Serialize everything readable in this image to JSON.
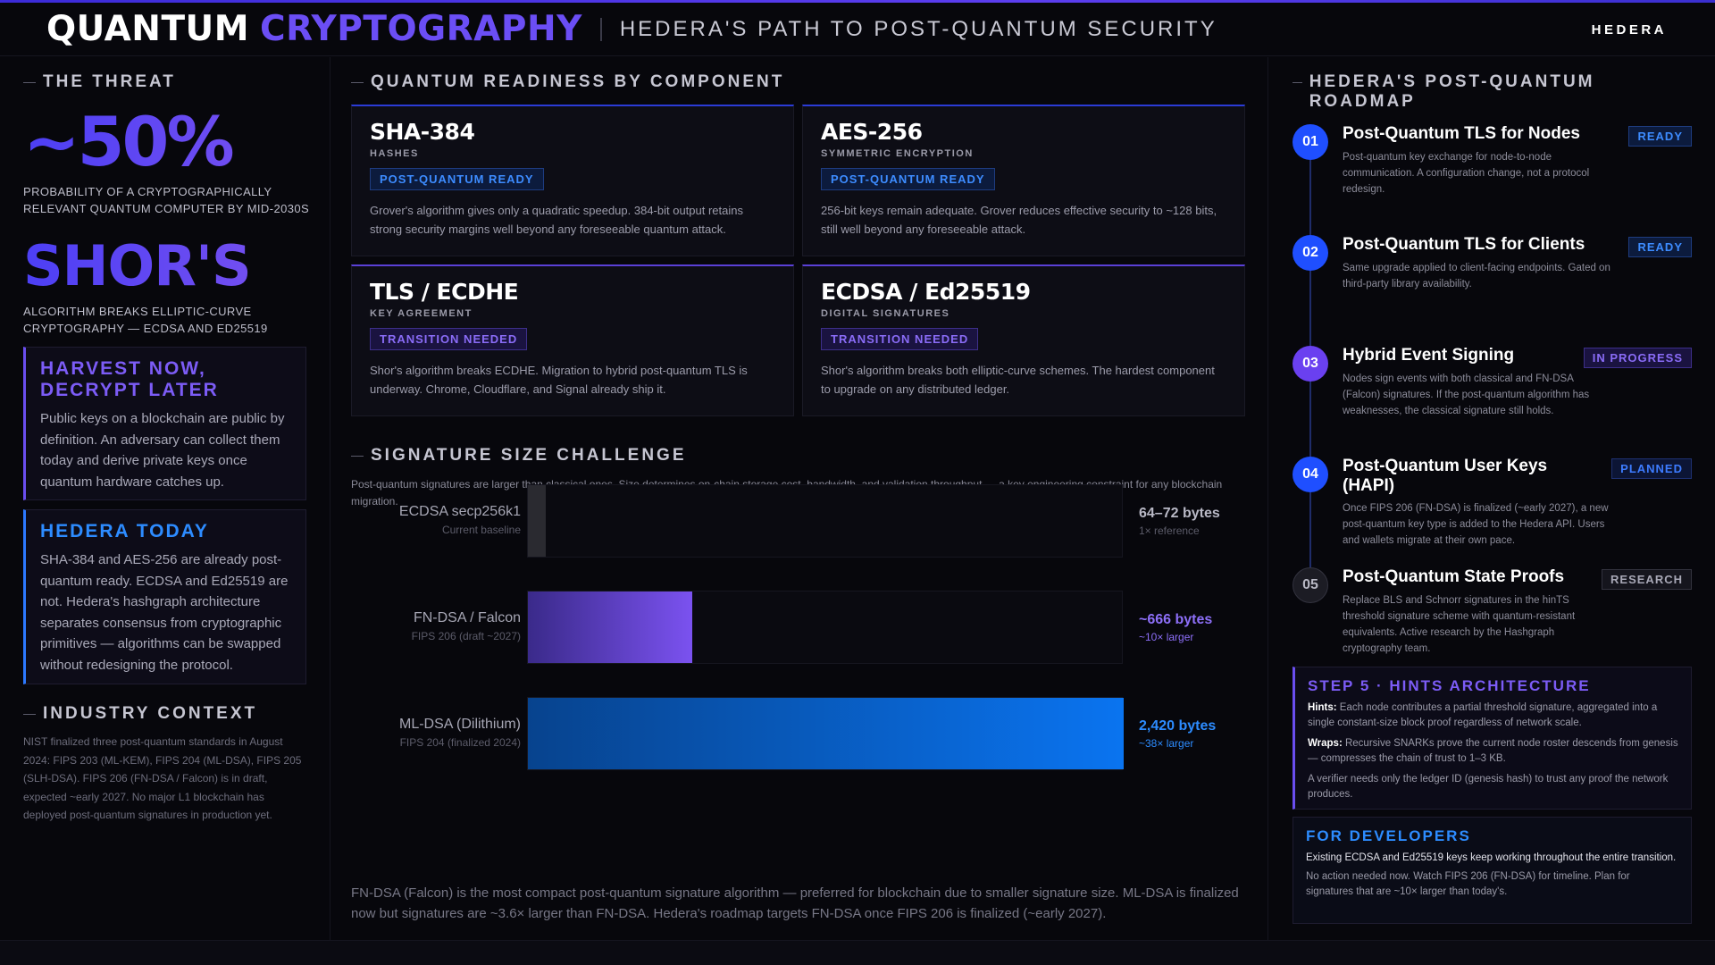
{
  "header": {
    "title_a": "QUANTUM",
    "title_b": "CRYPTOGRAPHY",
    "subtitle": "HEDERA'S PATH TO POST-QUANTUM SECURITY",
    "brand": "HEDERA"
  },
  "threat": {
    "heading": "THE THREAT",
    "stat1": "~50%",
    "stat1_caption": "PROBABILITY OF A CRYPTOGRAPHICALLY RELEVANT QUANTUM COMPUTER BY MID-2030S",
    "stat2": "SHOR'S",
    "stat2_caption": "ALGORITHM BREAKS ELLIPTIC-CURVE CRYPTOGRAPHY — ECDSA AND ED25519",
    "harvest_title": "HARVEST NOW, DECRYPT LATER",
    "harvest_body": "Public keys on a blockchain are public by definition. An adversary can collect them today and derive private keys once quantum hardware catches up.",
    "today_title": "HEDERA TODAY",
    "today_body": "SHA-384 and AES-256 are already post-quantum ready. ECDSA and Ed25519 are not. Hedera's hashgraph architecture separates consensus from cryptographic primitives — algorithms can be swapped without redesigning the protocol.",
    "industry_heading": "INDUSTRY CONTEXT",
    "industry_body": "NIST finalized three post-quantum standards in August 2024: FIPS 203 (ML-KEM), FIPS 204 (ML-DSA), FIPS 205 (SLH-DSA). FIPS 206 (FN-DSA / Falcon) is in draft, expected ~early 2027. No major L1 blockchain has deployed post-quantum signatures in production yet."
  },
  "readiness": {
    "heading": "QUANTUM READINESS BY COMPONENT",
    "cards": [
      {
        "title": "SHA-384",
        "sub": "HASHES",
        "badge": "POST-QUANTUM READY",
        "body": "Grover's algorithm gives only a quadratic speedup. 384-bit output retains strong security margins well beyond any foreseeable quantum attack."
      },
      {
        "title": "AES-256",
        "sub": "SYMMETRIC ENCRYPTION",
        "badge": "POST-QUANTUM READY",
        "body": "256-bit keys remain adequate. Grover reduces effective security to ~128 bits, still well beyond any foreseeable attack."
      },
      {
        "title": "TLS / ECDHE",
        "sub": "KEY AGREEMENT",
        "badge": "TRANSITION NEEDED",
        "body": "Shor's algorithm breaks ECDHE. Migration to hybrid post-quantum TLS is underway. Chrome, Cloudflare, and Signal already ship it."
      },
      {
        "title": "ECDSA / Ed25519",
        "sub": "DIGITAL SIGNATURES",
        "badge": "TRANSITION NEEDED",
        "body": "Shor's algorithm breaks both elliptic-curve schemes. The hardest component to upgrade on any distributed ledger."
      }
    ]
  },
  "signature": {
    "heading": "SIGNATURE SIZE CHALLENGE",
    "description": "Post-quantum signatures are larger than classical ones. Size determines on-chain storage cost, bandwidth, and validation throughput — a key engineering constraint for any blockchain migration.",
    "closing": "FN-DSA (Falcon) is the most compact post-quantum signature algorithm — preferred for blockchain due to smaller signature size. ML-DSA is finalized now but signatures are ~3.6× larger than FN-DSA. Hedera's roadmap targets FN-DSA once FIPS 206 is finalized (~early 2027)."
  },
  "chart_data": {
    "type": "bar",
    "orientation": "horizontal",
    "categories": [
      "ECDSA secp256k1",
      "FN-DSA / Falcon",
      "ML-DSA (Dilithium)"
    ],
    "category_notes": [
      "Current baseline",
      "FIPS 206 (draft ~2027)",
      "FIPS 204 (finalized 2024)"
    ],
    "values": [
      72,
      666,
      2420
    ],
    "value_labels": [
      "64–72 bytes",
      "~666 bytes",
      "2,420 bytes"
    ],
    "multiplier_labels": [
      "1× reference",
      "~10× larger",
      "~38× larger"
    ],
    "xlim": [
      0,
      2420
    ],
    "colors": [
      "#2a2a30",
      "#7b52f0",
      "#0a74f0"
    ],
    "value_colors": [
      "#b9b9c6",
      "#8d6ff8",
      "#2d8cff"
    ],
    "grid": false
  },
  "roadmap": {
    "heading": "HEDERA'S POST-QUANTUM ROADMAP",
    "items": [
      {
        "num": "01",
        "title": "Post-Quantum TLS for Nodes",
        "badge": "READY",
        "body": "Post-quantum key exchange for node-to-node communication. A configuration change, not a protocol redesign."
      },
      {
        "num": "02",
        "title": "Post-Quantum TLS for Clients",
        "badge": "READY",
        "body": "Same upgrade applied to client-facing endpoints. Gated on third-party library availability."
      },
      {
        "num": "03",
        "title": "Hybrid Event Signing",
        "badge": "IN PROGRESS",
        "body": "Nodes sign events with both classical and FN-DSA (Falcon) signatures. If the post-quantum algorithm has weaknesses, the classical signature still holds."
      },
      {
        "num": "04",
        "title": "Post-Quantum User Keys (HAPI)",
        "badge": "PLANNED",
        "body": "Once FIPS 206 (FN-DSA) is finalized (~early 2027), a new post-quantum key type is added to the Hedera API. Users and wallets migrate at their own pace."
      },
      {
        "num": "05",
        "title": "Post-Quantum State Proofs",
        "badge": "RESEARCH",
        "body": "Replace BLS and Schnorr signatures in the hinTS threshold signature scheme with quantum-resistant equivalents. Active research by the Hashgraph cryptography team."
      }
    ],
    "colors": {
      "blue": "#1f4fff",
      "purple": "#6a40f0",
      "gray": "#1c1c24"
    }
  },
  "step5": {
    "title": "STEP 5 · HINTS ARCHITECTURE",
    "hints_label": "Hints:",
    "hints_body": "Each node contributes a partial threshold signature, aggregated into a single constant-size block proof regardless of network scale.",
    "wraps_label": "Wraps:",
    "wraps_body": "Recursive SNARKs prove the current node roster descends from genesis — compresses the chain of trust to 1–3 KB.",
    "verifier": "A verifier needs only the ledger ID (genesis hash) to trust any proof the network produces."
  },
  "developers": {
    "title": "FOR DEVELOPERS",
    "line1": "Existing ECDSA and Ed25519 keys keep working throughout the entire transition.",
    "line2": "No action needed now. Watch FIPS 206 (FN-DSA) for timeline. Plan for signatures that are ~10× larger than today's."
  }
}
